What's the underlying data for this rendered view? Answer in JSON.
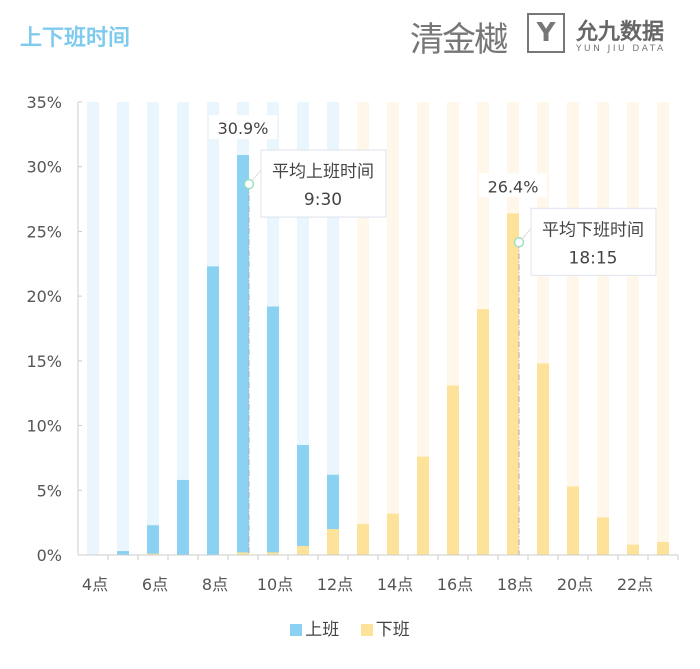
{
  "title": "上下班时间",
  "logos": {
    "left": "清金樾",
    "right_mark": "YJ",
    "right_cn": "允九数据",
    "right_en": "YUN JIU DATA"
  },
  "colors": {
    "commute_in": "#8ad1f2",
    "commute_out": "#fde39a",
    "track_in": "#eaf6fd",
    "track_out": "#fff8ea",
    "title": "#7fcbee"
  },
  "chart_data": {
    "type": "bar",
    "categories": [
      "4点",
      "5点",
      "6点",
      "7点",
      "8点",
      "9点",
      "10点",
      "11点",
      "12点",
      "13点",
      "14点",
      "15点",
      "16点",
      "17点",
      "18点",
      "19点",
      "20点",
      "21点",
      "22点",
      "23点"
    ],
    "tick_labels": [
      "4点",
      "6点",
      "8点",
      "10点",
      "12点",
      "14点",
      "16点",
      "18点",
      "20点",
      "22点"
    ],
    "series": [
      {
        "name": "上班",
        "values": [
          0,
          0.3,
          2.3,
          5.8,
          22.3,
          30.9,
          19.2,
          8.5,
          6.2,
          0,
          0,
          0,
          0,
          0,
          0,
          0,
          0,
          0,
          0,
          0
        ]
      },
      {
        "name": "下班",
        "values": [
          0,
          0,
          0.1,
          0,
          0,
          0.2,
          0.2,
          0.7,
          2.0,
          2.4,
          3.2,
          7.6,
          13.1,
          19.0,
          26.4,
          14.8,
          5.3,
          2.9,
          0.8,
          1.0
        ]
      }
    ],
    "yticks": [
      "0%",
      "5%",
      "10%",
      "15%",
      "20%",
      "25%",
      "30%",
      "35%"
    ],
    "ylim": [
      0,
      35
    ],
    "data_labels": [
      {
        "category": "9点",
        "text": "30.9%"
      },
      {
        "category": "18点",
        "text": "26.4%"
      }
    ],
    "annotations": [
      {
        "category": "9点",
        "label": "平均上班时间",
        "value": "9:30"
      },
      {
        "category": "18点",
        "label": "平均下班时间",
        "value": "18:15"
      }
    ],
    "legend": "bottom"
  }
}
